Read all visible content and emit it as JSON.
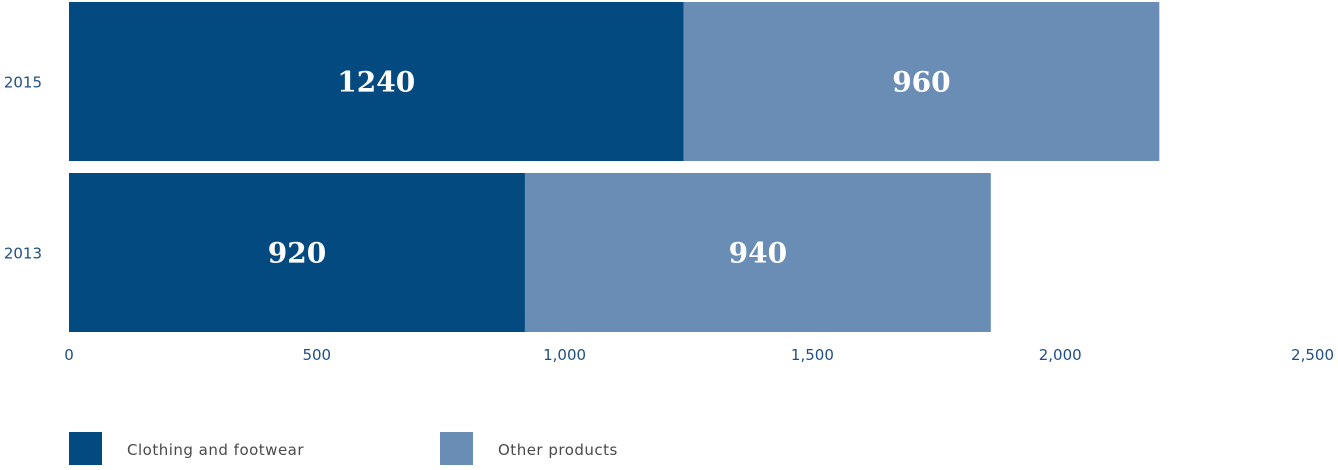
{
  "chart_data": {
    "type": "bar",
    "orientation": "horizontal",
    "stacked": true,
    "categories": [
      "2015",
      "2013"
    ],
    "series": [
      {
        "name": "Clothing and footwear",
        "values": [
          1240,
          920
        ],
        "color": "#034a80"
      },
      {
        "name": "Other products",
        "values": [
          960,
          940
        ],
        "color": "#6a8db6"
      }
    ],
    "xlim": [
      0,
      2500
    ],
    "xticks": [
      0,
      500,
      1000,
      1500,
      2000,
      2500
    ],
    "xtick_labels": [
      "0",
      "500",
      "1,000",
      "1,500",
      "2,000",
      "2,500"
    ],
    "title": "",
    "xlabel": "",
    "ylabel": "",
    "grid": false,
    "legend_position": "bottom-left"
  }
}
